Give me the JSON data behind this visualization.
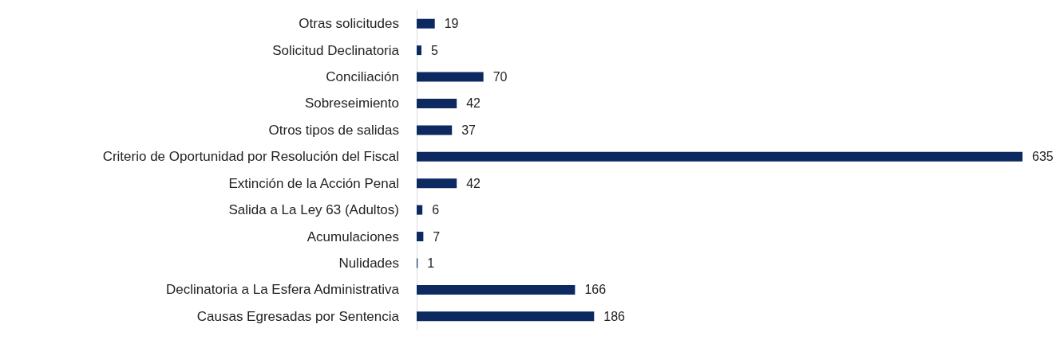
{
  "chart_data": {
    "type": "bar",
    "orientation": "horizontal",
    "categories": [
      "Otras solicitudes",
      "Solicitud Declinatoria",
      "Conciliación",
      "Sobreseimiento",
      "Otros tipos de salidas",
      "Criterio de Oportunidad por Resolución del Fiscal",
      "Extinción de la Acción Penal",
      "Salida a La Ley 63 (Adultos)",
      "Acumulaciones",
      "Nulidades",
      "Declinatoria a La Esfera Administrativa",
      "Causas Egresadas por Sentencia"
    ],
    "values": [
      19,
      5,
      70,
      42,
      37,
      635,
      42,
      6,
      7,
      1,
      166,
      186
    ],
    "color": "#0c2960",
    "data_labels": true,
    "tick_labels": "y"
  }
}
